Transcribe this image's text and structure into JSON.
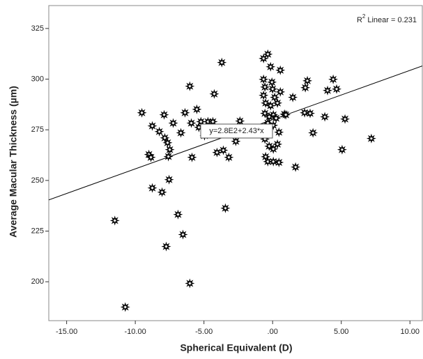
{
  "chart_data": {
    "type": "scatter",
    "x_label": "Spherical Equivalent (D)",
    "y_label": "Average Macular Thickness (µm)",
    "r2_prefix": "R",
    "r2_sup": "2",
    "r2_text": "Linear = 0.231",
    "fit_label": "y=2.8E2+2.43*x",
    "fit": {
      "x": [
        -16.3,
        10.9
      ],
      "y": [
        240.4,
        306.5
      ],
      "color": "#000000"
    },
    "marker_color": "#000000",
    "xlim": [
      -16.3,
      10.9
    ],
    "ylim": [
      180.8,
      336.3
    ],
    "xticks": [
      {
        "value": -15,
        "label": "-15.00"
      },
      {
        "value": -10,
        "label": "-10.00"
      },
      {
        "value": -5,
        "label": "-5.00"
      },
      {
        "value": 0,
        "label": ".00"
      },
      {
        "value": 5,
        "label": "5.00"
      },
      {
        "value": 10,
        "label": "10.00"
      }
    ],
    "yticks": [
      200,
      225,
      250,
      275,
      300,
      325
    ],
    "x": [
      -11.49,
      -10.73,
      -9.52,
      -9.01,
      -8.86,
      -8.76,
      -8.76,
      -8.25,
      -8.05,
      -7.9,
      -7.85,
      -7.75,
      -7.65,
      -7.59,
      -7.49,
      -7.54,
      -7.24,
      -6.89,
      -6.68,
      -6.53,
      -6.38,
      -6.03,
      -6.03,
      -5.92,
      -5.87,
      -5.52,
      -5.37,
      -5.22,
      -4.96,
      -4.71,
      -4.35,
      -4.25,
      -4.05,
      -3.7,
      -3.59,
      -3.44,
      -3.19,
      -2.68,
      -2.38,
      -0.66,
      -0.35,
      -0.15,
      0.56,
      -0.66,
      -0.05,
      -0.56,
      0,
      -0.66,
      0.15,
      0.56,
      -0.51,
      -0.15,
      0.35,
      -0.56,
      0.05,
      -0.25,
      0.25,
      0.86,
      -0.35,
      0.05,
      0.46,
      -0.56,
      -0.25,
      0.05,
      0.35,
      -0.51,
      -0.35,
      0.05,
      0.46,
      0.96,
      1.47,
      2.38,
      2.73,
      2.94,
      1.67,
      2.33,
      2.53,
      3.8,
      4.0,
      4.41,
      4.66,
      5.06,
      5.27,
      7.19
    ],
    "y": [
      230.2,
      187.5,
      283.4,
      262.8,
      261.4,
      276.9,
      246.3,
      274.1,
      244.2,
      282.4,
      271.0,
      217.4,
      268.6,
      261.8,
      265.2,
      250.4,
      278.3,
      233.2,
      273.5,
      223.3,
      283.4,
      296.5,
      199.2,
      278.3,
      261.4,
      285.1,
      276.2,
      279.0,
      272.1,
      279.0,
      279.0,
      292.7,
      263.8,
      308.2,
      264.9,
      236.3,
      261.4,
      269.3,
      279.3,
      310.2,
      312.3,
      306.1,
      304.4,
      299.9,
      298.5,
      296.1,
      295.1,
      292.0,
      291.0,
      293.7,
      288.2,
      286.9,
      288.2,
      283.1,
      282.4,
      281.4,
      280.7,
      282.7,
      278.3,
      277.2,
      273.8,
      270.4,
      266.9,
      265.5,
      267.9,
      261.7,
      259.3,
      259.3,
      258.9,
      282.4,
      291.0,
      295.8,
      283.1,
      273.5,
      256.6,
      283.4,
      299.2,
      281.4,
      294.4,
      299.9,
      295.1,
      265.2,
      280.3,
      270.7
    ]
  }
}
